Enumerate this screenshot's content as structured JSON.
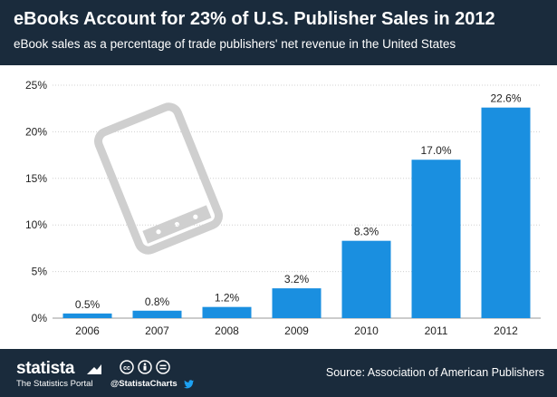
{
  "header": {
    "title": "eBooks Account for 23% of U.S. Publisher Sales in 2012",
    "subtitle": "eBook sales as a percentage of trade publishers' net revenue in the United States"
  },
  "chart_data": {
    "type": "bar",
    "title": "eBooks Account for 23% of U.S. Publisher Sales in 2012",
    "subtitle": "eBook sales as a percentage of trade publishers' net revenue in the United States",
    "categories": [
      "2006",
      "2007",
      "2008",
      "2009",
      "2010",
      "2011",
      "2012"
    ],
    "values": [
      0.5,
      0.8,
      1.2,
      3.2,
      8.3,
      17.0,
      22.6
    ],
    "value_labels": [
      "0.5%",
      "0.8%",
      "1.2%",
      "3.2%",
      "8.3%",
      "17.0%",
      "22.6%"
    ],
    "yticks": [
      0,
      5,
      10,
      15,
      20,
      25
    ],
    "ytick_labels": [
      "0%",
      "5%",
      "10%",
      "15%",
      "20%",
      "25%"
    ],
    "ylim": [
      0,
      25
    ],
    "xlabel": "",
    "ylabel": "",
    "grid": true,
    "bar_color": "#1a8fe0"
  },
  "footer": {
    "brand": "statista",
    "tagline": "The Statistics Portal",
    "handle": "@StatistaCharts",
    "source": "Source: Association of American Publishers"
  },
  "colors": {
    "header_bg": "#1a2b3c",
    "bar": "#1a8fe0",
    "grid": "#cccccc",
    "text": "#222222",
    "device": "#cfcfcf"
  }
}
